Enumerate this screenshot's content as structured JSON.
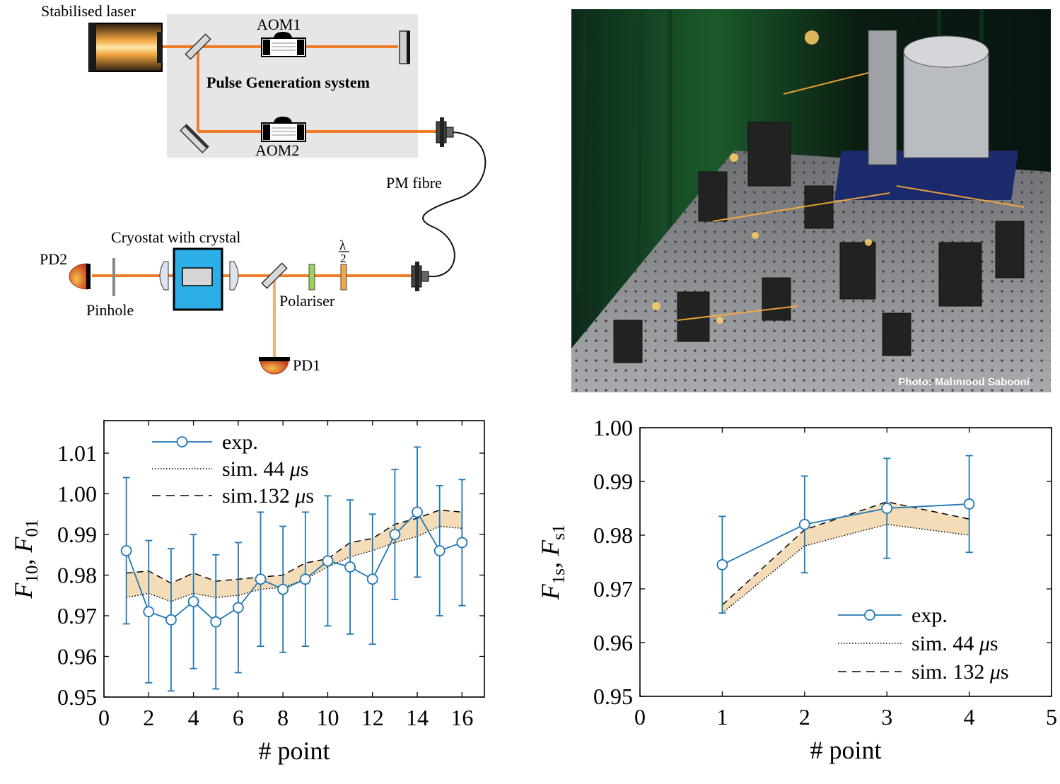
{
  "setup": {
    "laser_label": "Stabilised laser",
    "aom1_label": "AOM1",
    "aom2_label": "AOM2",
    "pulse_system_label": "Pulse Generation system",
    "fibre_label": "PM fibre",
    "cryostat_label": "Cryostat with crystal",
    "pd2_label": "PD2",
    "pd1_label": "PD1",
    "pinhole_label": "Pinhole",
    "polariser_label": "Polariser",
    "waveplate_num": "λ",
    "waveplate_den": "2",
    "beam_color": "#f07d2a",
    "weak_beam_color": "#f5b07a"
  },
  "photo": {
    "credit": "Photo: Mahmood Sabooni"
  },
  "chart_data": [
    {
      "type": "line",
      "xlabel": "# point",
      "ylabel_main": "F",
      "ylabel_sub1": "10",
      "ylabel_sep": ", ",
      "ylabel_sub2": "01",
      "xlim": [
        0,
        17
      ],
      "ylim": [
        0.95,
        1.018
      ],
      "xticks": [
        0,
        2,
        4,
        6,
        8,
        10,
        12,
        14,
        16
      ],
      "yticks": [
        0.95,
        0.96,
        0.97,
        0.98,
        0.99,
        1.0,
        1.01
      ],
      "ytick_labels": [
        "0.95",
        "0.96",
        "0.97",
        "0.98",
        "0.99",
        "1.00",
        "1.01"
      ],
      "legend": [
        "exp.",
        "sim. 44 μs",
        "sim.132 μs"
      ],
      "legend_position": "top-left",
      "exp_color": "#1f77b4",
      "band_color": "#f5dcb8",
      "series": [
        {
          "name": "exp.",
          "x": [
            1,
            2,
            3,
            4,
            5,
            6,
            7,
            8,
            9,
            10,
            11,
            12,
            13,
            14,
            15,
            16
          ],
          "y": [
            0.986,
            0.971,
            0.969,
            0.9735,
            0.9685,
            0.972,
            0.979,
            0.9765,
            0.979,
            0.9835,
            0.982,
            0.979,
            0.99,
            0.9955,
            0.986,
            0.988
          ],
          "err": [
            0.018,
            0.0175,
            0.0175,
            0.0165,
            0.0165,
            0.016,
            0.0165,
            0.0155,
            0.0165,
            0.016,
            0.0165,
            0.016,
            0.016,
            0.016,
            0.016,
            0.0155
          ]
        },
        {
          "name": "sim. 44 μs",
          "x": [
            1,
            2,
            3,
            4,
            5,
            6,
            7,
            8,
            9,
            10,
            11,
            12,
            13,
            14,
            15,
            16
          ],
          "y": [
            0.9745,
            0.9755,
            0.9735,
            0.9755,
            0.9745,
            0.975,
            0.9765,
            0.977,
            0.979,
            0.982,
            0.9845,
            0.986,
            0.988,
            0.9895,
            0.992,
            0.9915
          ]
        },
        {
          "name": "sim.132 μs",
          "x": [
            1,
            2,
            3,
            4,
            5,
            6,
            7,
            8,
            9,
            10,
            11,
            12,
            13,
            14,
            15,
            16
          ],
          "y": [
            0.9805,
            0.981,
            0.978,
            0.9805,
            0.9785,
            0.979,
            0.9795,
            0.98,
            0.983,
            0.984,
            0.988,
            0.989,
            0.9925,
            0.994,
            0.996,
            0.9955
          ]
        }
      ]
    },
    {
      "type": "line",
      "xlabel": "# point",
      "ylabel_main": "F",
      "ylabel_sub1": "1s",
      "ylabel_sep": ", ",
      "ylabel_sub2": "s1",
      "xlim": [
        0,
        5
      ],
      "ylim": [
        0.95,
        1.0
      ],
      "xticks": [
        0,
        1,
        2,
        3,
        4,
        5
      ],
      "yticks": [
        0.95,
        0.96,
        0.97,
        0.98,
        0.99,
        1.0
      ],
      "ytick_labels": [
        "0.95",
        "0.96",
        "0.97",
        "0.98",
        "0.99",
        "1.00"
      ],
      "legend": [
        "exp.",
        "sim. 44 μs",
        "sim. 132 μs"
      ],
      "legend_position": "bottom-right",
      "exp_color": "#1f77b4",
      "band_color": "#f5dcb8",
      "series": [
        {
          "name": "exp.",
          "x": [
            1,
            2,
            3,
            4
          ],
          "y": [
            0.9745,
            0.982,
            0.985,
            0.9858
          ],
          "err": [
            0.009,
            0.009,
            0.0093,
            0.009
          ]
        },
        {
          "name": "sim. 44 μs",
          "x": [
            1,
            2,
            3,
            4
          ],
          "y": [
            0.9655,
            0.978,
            0.982,
            0.98
          ]
        },
        {
          "name": "sim. 132 μs",
          "x": [
            1,
            2,
            3,
            4
          ],
          "y": [
            0.967,
            0.981,
            0.9862,
            0.983
          ]
        }
      ]
    }
  ]
}
